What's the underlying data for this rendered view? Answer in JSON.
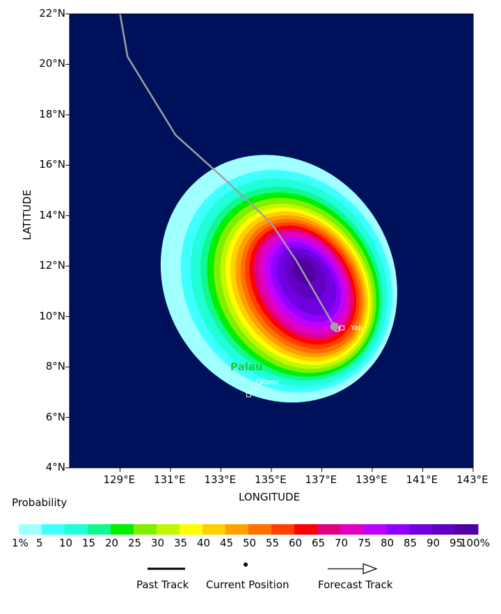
{
  "map": {
    "background_color": "#00115c",
    "lon_ticks": [
      "129°E",
      "131°E",
      "133°E",
      "135°E",
      "137°E",
      "139°E",
      "141°E",
      "143°E"
    ],
    "lat_ticks": [
      "4°N",
      "6°N",
      "8°N",
      "10°N",
      "12°N",
      "14°N",
      "16°N",
      "18°N",
      "20°N",
      "22°N"
    ],
    "xlabel": "LONGITUDE",
    "ylabel": "LATITUDE",
    "places": [
      {
        "name": "Palau",
        "color": "#22cc22"
      },
      {
        "name": "Koror",
        "color": "#ffffff"
      },
      {
        "name": "Yap",
        "color": "#ffffff"
      }
    ],
    "track": {
      "color": "#a0a0a0",
      "points_lonlat": [
        [
          129.0,
          22.0
        ],
        [
          129.3,
          20.3
        ],
        [
          131.2,
          17.2
        ],
        [
          133.2,
          15.4
        ],
        [
          135.0,
          13.7
        ],
        [
          136.0,
          12.2
        ],
        [
          137.5,
          9.6
        ]
      ],
      "current_position": [
        137.5,
        9.6
      ]
    }
  },
  "legend": {
    "title": "Probability",
    "labels": [
      "1%",
      "5",
      "10",
      "15",
      "20",
      "25",
      "30",
      "35",
      "40",
      "45",
      "50",
      "55",
      "60",
      "65",
      "70",
      "75",
      "80",
      "85",
      "90",
      "95",
      "100%"
    ],
    "colors": [
      "#a0ffff",
      "#40ffff",
      "#20ffd8",
      "#10f890",
      "#00f000",
      "#80f000",
      "#c0f800",
      "#ffff00",
      "#ffd000",
      "#ffa000",
      "#ff7000",
      "#ff4000",
      "#ff0000",
      "#e00080",
      "#e000c0",
      "#c000ff",
      "#9000ff",
      "#7000e0",
      "#6000c0",
      "#5000a0"
    ],
    "past_track": "Past Track",
    "current_position": "Current Position",
    "forecast_track": "Forecast Track"
  },
  "chart_data": {
    "type": "heatmap",
    "description_units": "strike probability percent",
    "xlim": [
      127.0,
      143.0
    ],
    "ylim": [
      4.0,
      22.0
    ],
    "contour_peak": 95,
    "contours": [
      {
        "level": 1,
        "center": [
          135.3,
          11.5
        ],
        "semi_major_deg": 8.2,
        "semi_minor_deg": 4.5
      },
      {
        "level": 5,
        "center": [
          135.6,
          11.4
        ],
        "semi_major_deg": 7.4,
        "semi_minor_deg": 4.0
      },
      {
        "level": 15,
        "center": [
          135.8,
          11.3
        ],
        "semi_major_deg": 6.5,
        "semi_minor_deg": 3.4
      },
      {
        "level": 30,
        "center": [
          136.0,
          11.2
        ],
        "semi_major_deg": 5.6,
        "semi_minor_deg": 2.8
      },
      {
        "level": 50,
        "center": [
          136.2,
          11.2
        ],
        "semi_major_deg": 4.6,
        "semi_minor_deg": 2.2
      },
      {
        "level": 70,
        "center": [
          136.3,
          11.3
        ],
        "semi_major_deg": 3.6,
        "semi_minor_deg": 1.6
      },
      {
        "level": 85,
        "center": [
          136.4,
          11.4
        ],
        "semi_major_deg": 2.4,
        "semi_minor_deg": 1.0
      },
      {
        "level": 95,
        "center": [
          136.3,
          11.8
        ],
        "semi_major_deg": 0.9,
        "semi_minor_deg": 0.4
      }
    ]
  }
}
